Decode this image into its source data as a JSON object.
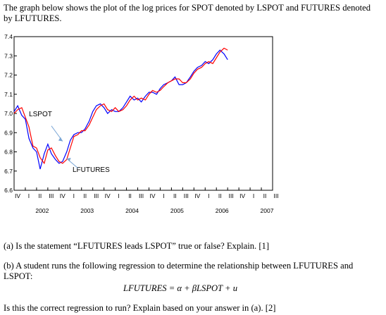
{
  "text": {
    "intro": "The graph below shows the plot of the log prices for SPOT denoted by LSPOT and FUTURES denoted by LFUTURES.",
    "question_a": "(a) Is the statement “LFUTURES leads LSPOT” true or false? Explain. [1]",
    "question_b": "(b) A student runs the following regression to determine the relationship between LFUTURES and LSPOT:",
    "equation": "LFUTURES = α + βLSPOT + u",
    "question_c": "Is this the correct regression to run? Explain based on your answer in (a). [2]"
  },
  "chart_data": {
    "type": "line",
    "ylim": [
      6.6,
      7.4
    ],
    "y_ticks": [
      "6.6",
      "6.7",
      "6.8",
      "6.9",
      "7.0",
      "7.1",
      "7.2",
      "7.3",
      "7.4"
    ],
    "x_year_labels": [
      "2002",
      "2003",
      "2004",
      "2005",
      "2006",
      "2007"
    ],
    "x_quarter_labels": [
      "I",
      "II",
      "III",
      "IV"
    ],
    "x_start": 2001.75,
    "x_end": 2007.5,
    "annotations": [
      {
        "label": "LSPOT",
        "series": "LSPOT"
      },
      {
        "label": "LFUTURES",
        "series": "LFUTURES"
      }
    ],
    "series": [
      {
        "name": "LSPOT",
        "color": "#0000ff",
        "points": [
          [
            2001.75,
            7.01
          ],
          [
            2001.83,
            7.04
          ],
          [
            2001.92,
            6.99
          ],
          [
            2002.0,
            6.97
          ],
          [
            2002.08,
            6.87
          ],
          [
            2002.17,
            6.82
          ],
          [
            2002.25,
            6.8
          ],
          [
            2002.33,
            6.71
          ],
          [
            2002.42,
            6.79
          ],
          [
            2002.5,
            6.84
          ],
          [
            2002.58,
            6.79
          ],
          [
            2002.67,
            6.76
          ],
          [
            2002.75,
            6.74
          ],
          [
            2002.83,
            6.75
          ],
          [
            2002.92,
            6.8
          ],
          [
            2003.0,
            6.86
          ],
          [
            2003.08,
            6.89
          ],
          [
            2003.17,
            6.9
          ],
          [
            2003.25,
            6.9
          ],
          [
            2003.33,
            6.92
          ],
          [
            2003.42,
            6.96
          ],
          [
            2003.5,
            7.01
          ],
          [
            2003.58,
            7.04
          ],
          [
            2003.67,
            7.05
          ],
          [
            2003.75,
            7.03
          ],
          [
            2003.83,
            7.0
          ],
          [
            2003.92,
            7.02
          ],
          [
            2004.0,
            7.01
          ],
          [
            2004.08,
            7.01
          ],
          [
            2004.17,
            7.03
          ],
          [
            2004.25,
            7.06
          ],
          [
            2004.33,
            7.09
          ],
          [
            2004.42,
            7.07
          ],
          [
            2004.5,
            7.08
          ],
          [
            2004.58,
            7.06
          ],
          [
            2004.67,
            7.09
          ],
          [
            2004.75,
            7.11
          ],
          [
            2004.83,
            7.11
          ],
          [
            2004.92,
            7.1
          ],
          [
            2005.0,
            7.13
          ],
          [
            2005.08,
            7.15
          ],
          [
            2005.17,
            7.16
          ],
          [
            2005.25,
            7.17
          ],
          [
            2005.33,
            7.19
          ],
          [
            2005.42,
            7.15
          ],
          [
            2005.5,
            7.15
          ],
          [
            2005.58,
            7.16
          ],
          [
            2005.67,
            7.19
          ],
          [
            2005.75,
            7.22
          ],
          [
            2005.83,
            7.24
          ],
          [
            2005.92,
            7.25
          ],
          [
            2006.0,
            7.27
          ],
          [
            2006.08,
            7.26
          ],
          [
            2006.17,
            7.28
          ],
          [
            2006.25,
            7.31
          ],
          [
            2006.33,
            7.33
          ],
          [
            2006.42,
            7.31
          ],
          [
            2006.5,
            7.28
          ]
        ]
      },
      {
        "name": "LFUTURES",
        "color": "#ff0000",
        "points": [
          [
            2001.75,
            7.0
          ],
          [
            2001.83,
            7.02
          ],
          [
            2001.92,
            7.03
          ],
          [
            2002.0,
            6.98
          ],
          [
            2002.08,
            6.93
          ],
          [
            2002.17,
            6.83
          ],
          [
            2002.25,
            6.82
          ],
          [
            2002.33,
            6.77
          ],
          [
            2002.42,
            6.74
          ],
          [
            2002.5,
            6.81
          ],
          [
            2002.58,
            6.82
          ],
          [
            2002.67,
            6.78
          ],
          [
            2002.75,
            6.75
          ],
          [
            2002.83,
            6.74
          ],
          [
            2002.92,
            6.76
          ],
          [
            2003.0,
            6.82
          ],
          [
            2003.08,
            6.88
          ],
          [
            2003.17,
            6.89
          ],
          [
            2003.25,
            6.91
          ],
          [
            2003.33,
            6.91
          ],
          [
            2003.42,
            6.94
          ],
          [
            2003.5,
            6.98
          ],
          [
            2003.58,
            7.02
          ],
          [
            2003.67,
            7.04
          ],
          [
            2003.75,
            7.05
          ],
          [
            2003.83,
            7.02
          ],
          [
            2003.92,
            7.01
          ],
          [
            2004.0,
            7.03
          ],
          [
            2004.08,
            7.01
          ],
          [
            2004.17,
            7.02
          ],
          [
            2004.25,
            7.04
          ],
          [
            2004.33,
            7.07
          ],
          [
            2004.42,
            7.09
          ],
          [
            2004.5,
            7.07
          ],
          [
            2004.58,
            7.08
          ],
          [
            2004.67,
            7.07
          ],
          [
            2004.75,
            7.1
          ],
          [
            2004.83,
            7.12
          ],
          [
            2004.92,
            7.11
          ],
          [
            2005.0,
            7.12
          ],
          [
            2005.08,
            7.14
          ],
          [
            2005.17,
            7.16
          ],
          [
            2005.25,
            7.17
          ],
          [
            2005.33,
            7.18
          ],
          [
            2005.42,
            7.18
          ],
          [
            2005.5,
            7.16
          ],
          [
            2005.58,
            7.16
          ],
          [
            2005.67,
            7.18
          ],
          [
            2005.75,
            7.21
          ],
          [
            2005.83,
            7.23
          ],
          [
            2005.92,
            7.24
          ],
          [
            2006.0,
            7.26
          ],
          [
            2006.08,
            7.27
          ],
          [
            2006.17,
            7.26
          ],
          [
            2006.25,
            7.29
          ],
          [
            2006.33,
            7.32
          ],
          [
            2006.42,
            7.34
          ],
          [
            2006.5,
            7.33
          ]
        ]
      }
    ]
  }
}
